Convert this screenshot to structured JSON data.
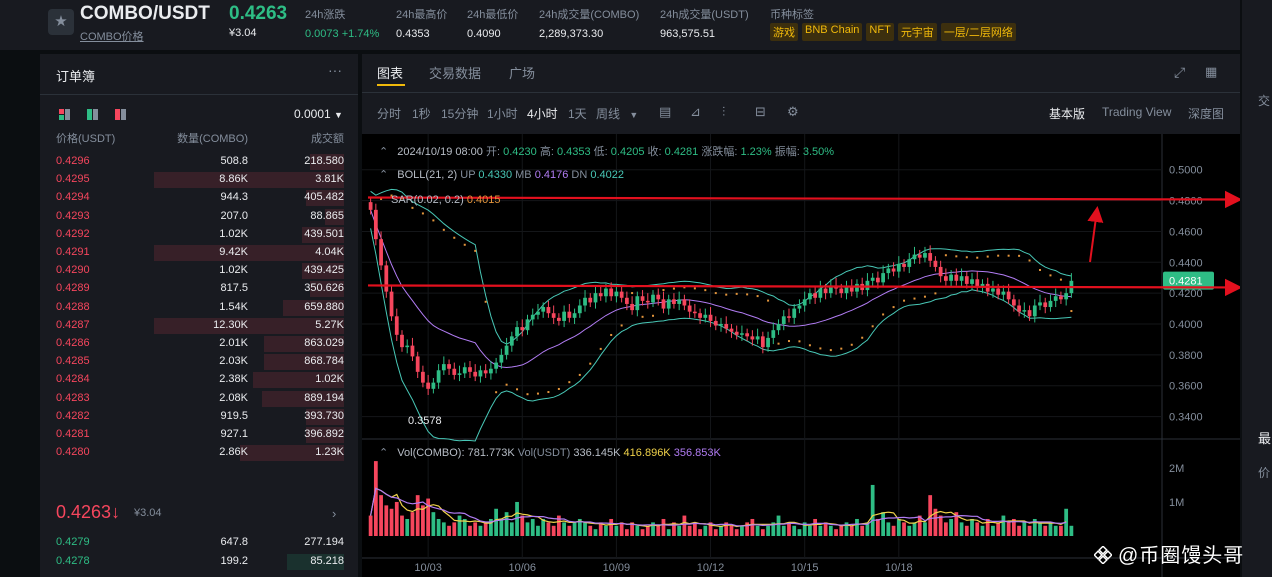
{
  "header": {
    "pair": "COMBO/USDT",
    "pair_sub": "COMBO价格",
    "price": "0.4263",
    "price_fiat": "¥3.04",
    "stats": [
      {
        "label": "24h涨跌",
        "value": "0.0073 +1.74%"
      },
      {
        "label": "24h最高价",
        "value": "0.4353"
      },
      {
        "label": "24h最低价",
        "value": "0.4090"
      },
      {
        "label": "24h成交量(COMBO)",
        "value": "2,289,373.30"
      },
      {
        "label": "24h成交量(USDT)",
        "value": "963,575.51"
      }
    ],
    "tags_label": "币种标签",
    "tags": [
      "游戏",
      "BNB Chain",
      "NFT",
      "元宇宙",
      "一层/二层网络"
    ]
  },
  "orderbook": {
    "title": "订单簿",
    "more": "···",
    "precision": "0.0001",
    "col_price": "价格(USDT)",
    "col_amount": "数量(COMBO)",
    "col_total": "成交额",
    "asks": [
      {
        "price": "0.4296",
        "amount": "508.8",
        "total": "218.580",
        "depth": 0.18
      },
      {
        "price": "0.4295",
        "amount": "8.86K",
        "total": "3.81K",
        "depth": 1.0
      },
      {
        "price": "0.4294",
        "amount": "944.3",
        "total": "405.482",
        "depth": 0.2
      },
      {
        "price": "0.4293",
        "amount": "207.0",
        "total": "88.865",
        "depth": 0.1
      },
      {
        "price": "0.4292",
        "amount": "1.02K",
        "total": "439.501",
        "depth": 0.22
      },
      {
        "price": "0.4291",
        "amount": "9.42K",
        "total": "4.04K",
        "depth": 1.0
      },
      {
        "price": "0.4290",
        "amount": "1.02K",
        "total": "439.425",
        "depth": 0.22
      },
      {
        "price": "0.4289",
        "amount": "817.5",
        "total": "350.626",
        "depth": 0.18
      },
      {
        "price": "0.4288",
        "amount": "1.54K",
        "total": "659.880",
        "depth": 0.32
      },
      {
        "price": "0.4287",
        "amount": "12.30K",
        "total": "5.27K",
        "depth": 1.0
      },
      {
        "price": "0.4286",
        "amount": "2.01K",
        "total": "863.029",
        "depth": 0.42
      },
      {
        "price": "0.4285",
        "amount": "2.03K",
        "total": "868.784",
        "depth": 0.42
      },
      {
        "price": "0.4284",
        "amount": "2.38K",
        "total": "1.02K",
        "depth": 0.48
      },
      {
        "price": "0.4283",
        "amount": "2.08K",
        "total": "889.194",
        "depth": 0.43
      },
      {
        "price": "0.4282",
        "amount": "919.5",
        "total": "393.730",
        "depth": 0.2
      },
      {
        "price": "0.4281",
        "amount": "927.1",
        "total": "396.892",
        "depth": 0.2
      },
      {
        "price": "0.4280",
        "amount": "2.86K",
        "total": "1.23K",
        "depth": 0.55
      }
    ],
    "last_price": "0.4263",
    "last_arrow": "↓",
    "last_fiat": "¥3.04",
    "bids": [
      {
        "price": "0.4279",
        "amount": "647.8",
        "total": "277.194",
        "depth": 0.0
      },
      {
        "price": "0.4278",
        "amount": "199.2",
        "total": "85.218",
        "depth": 0.3
      }
    ]
  },
  "chart_panel": {
    "tabs": [
      "图表",
      "交易数据",
      "广场"
    ],
    "timeframes": [
      "分时",
      "1秒",
      "15分钟",
      "1小时",
      "4小时",
      "1天",
      "周线"
    ],
    "active_timeframe": "4小时",
    "views": [
      "基本版",
      "Trading View",
      "深度图"
    ],
    "active_view": "基本版"
  },
  "legend": {
    "ohlc": {
      "date": "2024/10/19 08:00",
      "open_label": "开:",
      "open": "0.4230",
      "high_label": "高:",
      "high": "0.4353",
      "low_label": "低:",
      "low": "0.4205",
      "close_label": "收:",
      "close": "0.4281",
      "change_label": "涨跌幅:",
      "change": "1.23%",
      "amp_label": "振幅:",
      "amp": "3.50%"
    },
    "boll": {
      "label": "BOLL(21, 2)",
      "up_label": "UP",
      "up": "0.4330",
      "mb_label": "MB",
      "mb": "0.4176",
      "dn_label": "DN",
      "dn": "0.4022"
    },
    "sar": {
      "label": "SAR(0.02, 0.2)",
      "value": "0.4015"
    },
    "vol": {
      "label": "Vol(COMBO):",
      "value": "781.773K",
      "usdt_label": "Vol(USDT)",
      "usdt": "336.145K",
      "ma1": "416.896K",
      "ma2": "356.853K"
    }
  },
  "chart_data": {
    "type": "candlestick",
    "interval": "4h",
    "price_axis": {
      "ticks": [
        "0.5000",
        "0.4800",
        "0.4600",
        "0.4400",
        "0.4200",
        "0.4000",
        "0.3800",
        "0.3600",
        "0.3400"
      ],
      "range": [
        0.33,
        0.5115
      ]
    },
    "current_price_label": "0.4281",
    "low_annotation": "0.3578",
    "volume_axis": {
      "ticks": [
        "2M",
        "1M"
      ],
      "range": [
        0,
        2.35
      ]
    },
    "x_labels": [
      "10/03",
      "10/06",
      "10/09",
      "10/12",
      "10/15",
      "10/18"
    ],
    "overlay_levels": [
      0.482,
      0.425
    ],
    "close_series": [
      0.474,
      0.455,
      0.438,
      0.421,
      0.405,
      0.393,
      0.385,
      0.386,
      0.379,
      0.369,
      0.362,
      0.358,
      0.362,
      0.37,
      0.374,
      0.371,
      0.367,
      0.368,
      0.372,
      0.369,
      0.366,
      0.37,
      0.368,
      0.371,
      0.375,
      0.38,
      0.386,
      0.392,
      0.398,
      0.396,
      0.403,
      0.406,
      0.408,
      0.411,
      0.407,
      0.404,
      0.402,
      0.408,
      0.404,
      0.407,
      0.412,
      0.417,
      0.414,
      0.42,
      0.418,
      0.423,
      0.418,
      0.421,
      0.417,
      0.413,
      0.409,
      0.418,
      0.415,
      0.414,
      0.419,
      0.416,
      0.41,
      0.416,
      0.413,
      0.416,
      0.412,
      0.408,
      0.407,
      0.404,
      0.406,
      0.402,
      0.399,
      0.4,
      0.397,
      0.395,
      0.393,
      0.394,
      0.392,
      0.39,
      0.392,
      0.385,
      0.391,
      0.396,
      0.4,
      0.405,
      0.404,
      0.41,
      0.412,
      0.416,
      0.42,
      0.417,
      0.423,
      0.42,
      0.425,
      0.423,
      0.42,
      0.424,
      0.421,
      0.426,
      0.422,
      0.428,
      0.43,
      0.427,
      0.433,
      0.436,
      0.434,
      0.439,
      0.437,
      0.442,
      0.445,
      0.443,
      0.446,
      0.441,
      0.437,
      0.431,
      0.428,
      0.432,
      0.428,
      0.431,
      0.426,
      0.429,
      0.424,
      0.426,
      0.421,
      0.423,
      0.419,
      0.421,
      0.416,
      0.412,
      0.408,
      0.409,
      0.405,
      0.412,
      0.414,
      0.411,
      0.415,
      0.418,
      0.416,
      0.42,
      0.428
    ],
    "volume_series": [
      0.6,
      2.2,
      1.2,
      0.9,
      0.8,
      1.0,
      0.6,
      0.5,
      0.7,
      1.2,
      0.9,
      1.1,
      0.7,
      0.5,
      0.4,
      0.3,
      0.4,
      0.6,
      0.5,
      0.3,
      0.4,
      0.3,
      0.4,
      0.5,
      0.8,
      0.5,
      0.7,
      0.4,
      1.0,
      0.6,
      0.4,
      0.5,
      0.3,
      0.5,
      0.4,
      0.3,
      0.6,
      0.4,
      0.3,
      0.4,
      0.5,
      0.4,
      0.3,
      0.2,
      0.4,
      0.3,
      0.5,
      0.3,
      0.4,
      0.2,
      0.4,
      0.3,
      0.2,
      0.3,
      0.4,
      0.3,
      0.5,
      0.2,
      0.4,
      0.3,
      0.6,
      0.3,
      0.4,
      0.2,
      0.3,
      0.4,
      0.2,
      0.3,
      0.4,
      0.3,
      0.2,
      0.3,
      0.4,
      0.5,
      0.3,
      0.2,
      0.3,
      0.4,
      0.6,
      0.3,
      0.4,
      0.3,
      0.2,
      0.4,
      0.3,
      0.5,
      0.3,
      0.4,
      0.3,
      0.2,
      0.3,
      0.4,
      0.3,
      0.5,
      0.3,
      0.4,
      1.5,
      0.5,
      0.7,
      0.4,
      0.3,
      0.5,
      0.4,
      0.3,
      0.4,
      0.6,
      0.4,
      1.2,
      0.8,
      0.6,
      0.4,
      0.5,
      0.7,
      0.4,
      0.3,
      0.5,
      0.4,
      0.3,
      0.5,
      0.3,
      0.4,
      0.6,
      0.4,
      0.5,
      0.3,
      0.4,
      0.3,
      0.5,
      0.4,
      0.3,
      0.4,
      0.3,
      0.3,
      0.8
    ]
  },
  "colors": {
    "up": "#2ebd85",
    "down": "#f6465d",
    "accent": "#f0b90b",
    "boll": "#48c7b6",
    "mb": "#b17cf3",
    "sar": "#e3953c",
    "arrow": "#e3101e"
  },
  "right_edge": [
    "交",
    "最",
    "价"
  ],
  "watermark": "@币圈馒头哥"
}
